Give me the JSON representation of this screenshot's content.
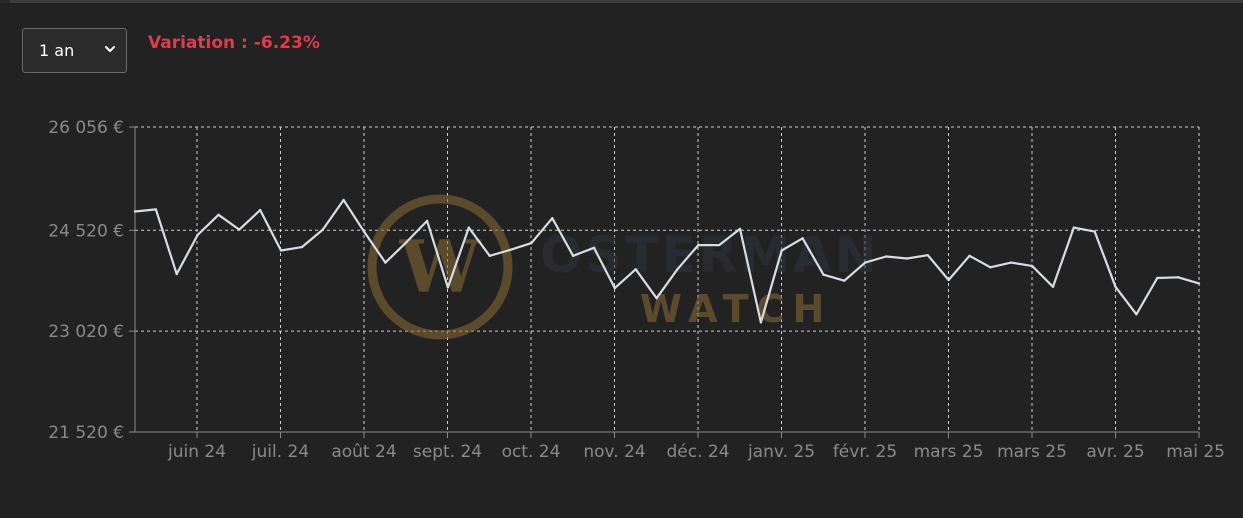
{
  "period_select": {
    "value": "1 an",
    "icon": "chevron-down-icon"
  },
  "variation": {
    "label": "Variation :",
    "value": "-6.23%",
    "color": "#e03c4a"
  },
  "watermark": {
    "line1": "OSTERMAN",
    "line2": "WATCH",
    "monogram": "W",
    "gold": "#8a6b34",
    "navy": "#2d3440"
  },
  "chart_data": {
    "type": "line",
    "title": "",
    "xlabel": "",
    "ylabel": "",
    "y_ticks": [
      "21 520 €",
      "23 020 €",
      "24 520 €",
      "26 056 €"
    ],
    "y_tick_values": [
      21520,
      23020,
      24520,
      26056
    ],
    "ylim": [
      21520,
      26056
    ],
    "x_tick_labels": [
      "juin 24",
      "juil. 24",
      "août 24",
      "sept. 24",
      "oct. 24",
      "nov. 24",
      "déc. 24",
      "janv. 25",
      "févr. 25",
      "mars 25",
      "mars 25",
      "avr. 25",
      "mai 25"
    ],
    "grid": true,
    "line_color": "#d7dde3",
    "series": [
      {
        "values": [
          24800,
          24830,
          23870,
          24450,
          24750,
          24530,
          24820,
          24220,
          24270,
          24530,
          24970,
          24490,
          24040,
          24340,
          24660,
          23670,
          24560,
          24140,
          24230,
          24330,
          24700,
          24140,
          24260,
          23660,
          23940,
          23510,
          23940,
          24300,
          24300,
          24540,
          23150,
          24220,
          24400,
          23860,
          23770,
          24040,
          24130,
          24100,
          24150,
          23780,
          24140,
          23970,
          24040,
          23990,
          23680,
          24560,
          24500,
          23680,
          23270,
          23810,
          23820,
          23730
        ]
      }
    ]
  }
}
